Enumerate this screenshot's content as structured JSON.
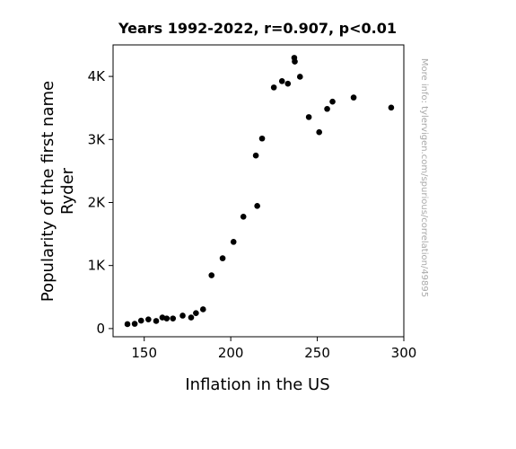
{
  "chart_data": {
    "type": "scatter",
    "title": "Years 1992-2022, r=0.907, p<0.01",
    "xlabel": "Inflation in the US",
    "ylabel_line1": "Popularity of the first name",
    "ylabel_line2": "Ryder",
    "side_note": "More info: tylervigen.com/spurious/correlation/49895",
    "xlim": [
      132,
      300
    ],
    "ylim": [
      -130,
      4500
    ],
    "xticks": [
      {
        "value": 150,
        "label": "150"
      },
      {
        "value": 200,
        "label": "200"
      },
      {
        "value": 250,
        "label": "250"
      },
      {
        "value": 300,
        "label": "300"
      }
    ],
    "yticks": [
      {
        "value": 0,
        "label": "0"
      },
      {
        "value": 1000,
        "label": "1K"
      },
      {
        "value": 2000,
        "label": "2K"
      },
      {
        "value": 3000,
        "label": "3K"
      },
      {
        "value": 4000,
        "label": "4K"
      }
    ],
    "point_color": "#000000",
    "points": [
      {
        "x": 140.3,
        "y": 70
      },
      {
        "x": 144.5,
        "y": 75
      },
      {
        "x": 148.2,
        "y": 125
      },
      {
        "x": 152.4,
        "y": 145
      },
      {
        "x": 156.9,
        "y": 120
      },
      {
        "x": 160.5,
        "y": 175
      },
      {
        "x": 163.0,
        "y": 160
      },
      {
        "x": 166.6,
        "y": 160
      },
      {
        "x": 172.2,
        "y": 205
      },
      {
        "x": 177.1,
        "y": 175
      },
      {
        "x": 179.9,
        "y": 245
      },
      {
        "x": 184.0,
        "y": 305
      },
      {
        "x": 188.9,
        "y": 845
      },
      {
        "x": 195.3,
        "y": 1115
      },
      {
        "x": 201.6,
        "y": 1375
      },
      {
        "x": 207.3,
        "y": 1775
      },
      {
        "x": 214.5,
        "y": 2745
      },
      {
        "x": 215.3,
        "y": 1945
      },
      {
        "x": 218.1,
        "y": 3015
      },
      {
        "x": 224.9,
        "y": 3825
      },
      {
        "x": 229.6,
        "y": 3925
      },
      {
        "x": 233.0,
        "y": 3885
      },
      {
        "x": 236.7,
        "y": 4295
      },
      {
        "x": 237.0,
        "y": 4235
      },
      {
        "x": 240.0,
        "y": 3995
      },
      {
        "x": 245.1,
        "y": 3355
      },
      {
        "x": 251.1,
        "y": 3115
      },
      {
        "x": 255.7,
        "y": 3485
      },
      {
        "x": 258.8,
        "y": 3600
      },
      {
        "x": 271.0,
        "y": 3665
      },
      {
        "x": 292.7,
        "y": 3505
      }
    ]
  }
}
